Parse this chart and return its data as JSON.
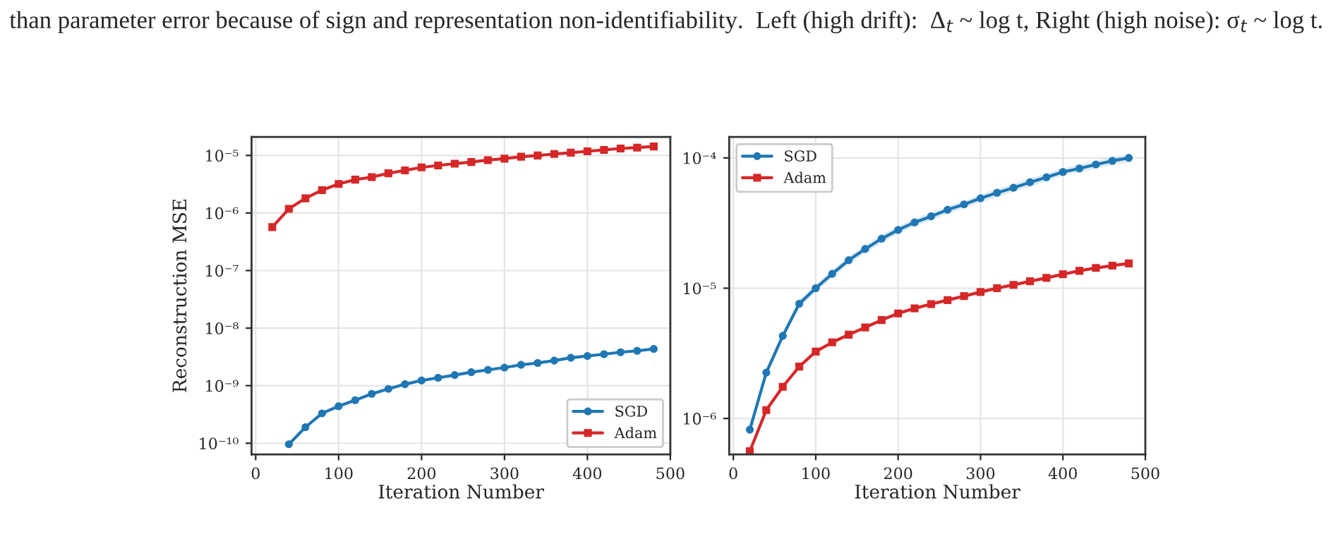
{
  "chart_data": [
    {
      "type": "line",
      "annotations": [
        "than parameter error because of sign and representation non-identifiability.  Left (high drift):  Δ$_{t}$ ~ log t, Right (high noise): σ$_{t}$ ~ log t."
      ],
      "xlabel": "Iteration Number",
      "ylabel": "Reconstruction MSE",
      "log": true,
      "grid": true,
      "legend": "lower right",
      "x": [
        20,
        40,
        60,
        80,
        100,
        120,
        140,
        160,
        180,
        200,
        220,
        240,
        260,
        280,
        300,
        320,
        340,
        360,
        380,
        400,
        420,
        440,
        460,
        480
      ],
      "xlim": [
        -5,
        500
      ],
      "xticks": [
        0,
        100,
        200,
        300,
        400,
        500
      ],
      "ylim": [
        6.4e-11,
        2.1e-05
      ],
      "yticks": [
        {
          "value": 1e-10,
          "label": "10⁻¹⁰"
        },
        {
          "value": 1e-09,
          "label": "10⁻⁹"
        },
        {
          "value": 1e-08,
          "label": "10⁻⁸"
        },
        {
          "value": 1e-07,
          "label": "10⁻⁷"
        },
        {
          "value": 1e-06,
          "label": "10⁻⁶"
        },
        {
          "value": 1e-05,
          "label": "10⁻⁵"
        }
      ],
      "series": [
        {
          "name": "SGD",
          "color": "#1f77b4",
          "marker": "circle",
          "values": [
            null,
            9.6e-11,
            1.9e-10,
            3.3e-10,
            4.4e-10,
            5.6e-10,
            7.2e-10,
            8.8e-10,
            1.06e-09,
            1.23e-09,
            1.37e-09,
            1.53e-09,
            1.71e-09,
            1.88e-09,
            2.06e-09,
            2.3e-09,
            2.48e-09,
            2.73e-09,
            3.05e-09,
            3.28e-09,
            3.53e-09,
            3.81e-09,
            4.03e-09,
            4.34e-09
          ]
        },
        {
          "name": "Adam",
          "color": "#d62728",
          "marker": "square",
          "values": [
            5.7e-07,
            1.18e-06,
            1.8e-06,
            2.5e-06,
            3.2e-06,
            3.8e-06,
            4.2e-06,
            4.9e-06,
            5.5e-06,
            6.2e-06,
            6.7e-06,
            7.2e-06,
            7.7e-06,
            8.3e-06,
            8.8e-06,
            9.5e-06,
            1e-05,
            1.06e-05,
            1.12e-05,
            1.18e-05,
            1.25e-05,
            1.32e-05,
            1.37e-05,
            1.43e-05
          ]
        }
      ]
    },
    {
      "type": "line",
      "xlabel": "Iteration Number",
      "log": true,
      "grid": true,
      "legend": "top left",
      "x": [
        20,
        40,
        60,
        80,
        100,
        120,
        140,
        160,
        180,
        200,
        220,
        240,
        260,
        280,
        300,
        320,
        340,
        360,
        380,
        400,
        420,
        440,
        460,
        480
      ],
      "xlim": [
        -5,
        500
      ],
      "xticks": [
        0,
        100,
        200,
        300,
        400,
        500
      ],
      "ylim": [
        5.3e-07,
        0.000145
      ],
      "yticks": [
        {
          "value": 1e-06,
          "label": "10⁻⁶"
        },
        {
          "value": 1e-05,
          "label": "10⁻⁵"
        },
        {
          "value": 0.0001,
          "label": "10⁻⁴"
        }
      ],
      "series": [
        {
          "name": "SGD",
          "color": "#1f77b4",
          "marker": "circle",
          "values": [
            8.2e-07,
            2.25e-06,
            4.3e-06,
            7.6e-06,
            1e-05,
            1.29e-05,
            1.64e-05,
            2e-05,
            2.4e-05,
            2.8e-05,
            3.2e-05,
            3.56e-05,
            4e-05,
            4.4e-05,
            4.9e-05,
            5.4e-05,
            5.9e-05,
            6.5e-05,
            7.1e-05,
            7.8e-05,
            8.3e-05,
            8.9e-05,
            9.5e-05,
            0.0001
          ],
          "lower": [
            7.6e-07,
            2.1e-06,
            4e-06,
            7.1e-06,
            9.3e-06,
            1.2e-05,
            1.53e-05,
            1.86e-05,
            2.23e-05,
            2.6e-05,
            2.98e-05,
            3.31e-05,
            3.72e-05,
            4.1e-05,
            4.56e-05,
            5e-05,
            5.5e-05,
            6e-05,
            6.6e-05,
            7.3e-05,
            7.7e-05,
            8.3e-05,
            8.8e-05,
            9.3e-05
          ],
          "upper": [
            8.8e-07,
            2.4e-06,
            4.6e-06,
            8.1e-06,
            1.07e-05,
            1.38e-05,
            1.75e-05,
            2.14e-05,
            2.57e-05,
            3e-05,
            3.42e-05,
            3.81e-05,
            4.28e-05,
            4.7e-05,
            5.24e-05,
            5.8e-05,
            6.3e-05,
            7e-05,
            7.6e-05,
            8.3e-05,
            8.9e-05,
            9.5e-05,
            0.000102,
            0.000107
          ]
        },
        {
          "name": "Adam",
          "color": "#d62728",
          "marker": "square",
          "values": [
            5.6e-07,
            1.16e-06,
            1.75e-06,
            2.5e-06,
            3.26e-06,
            3.84e-06,
            4.4e-06,
            5e-06,
            5.7e-06,
            6.4e-06,
            7e-06,
            7.55e-06,
            8.1e-06,
            8.7e-06,
            9.35e-06,
            1e-05,
            1.06e-05,
            1.13e-05,
            1.2e-05,
            1.28e-05,
            1.36e-05,
            1.43e-05,
            1.49e-05,
            1.55e-05
          ],
          "lower": [
            5.4e-07,
            1.12e-06,
            1.69e-06,
            2.42e-06,
            3.15e-06,
            3.71e-06,
            4.25e-06,
            4.83e-06,
            5.5e-06,
            6.2e-06,
            6.76e-06,
            7.3e-06,
            7.8e-06,
            8.4e-06,
            9e-06,
            9.66e-06,
            1.02e-05,
            1.09e-05,
            1.16e-05,
            1.24e-05,
            1.31e-05,
            1.38e-05,
            1.44e-05,
            1.5e-05
          ],
          "upper": [
            5.8e-07,
            1.2e-06,
            1.81e-06,
            2.58e-06,
            3.37e-06,
            3.97e-06,
            4.55e-06,
            5.17e-06,
            5.9e-06,
            6.6e-06,
            7.24e-06,
            7.8e-06,
            8.4e-06,
            9e-06,
            9.7e-06,
            1.04e-05,
            1.1e-05,
            1.17e-05,
            1.24e-05,
            1.32e-05,
            1.41e-05,
            1.48e-05,
            1.54e-05,
            1.6e-05
          ]
        }
      ]
    }
  ]
}
